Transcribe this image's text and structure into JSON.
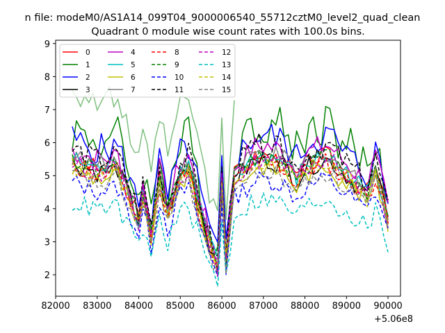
{
  "chart_data": {
    "type": "line",
    "suptitle": "n file: modeM0/AS1A14_099T04_9000006540_55712cztM0_level2_quad_clean",
    "title": "Quadrant 0 module wise count rates with 100.0s bins.",
    "xlabel": "",
    "ylabel": "",
    "x_offset_label": "+5.06e8",
    "xlim": [
      82000,
      90300
    ],
    "ylim": [
      1.35,
      9.1
    ],
    "x_ticks": [
      82000,
      83000,
      84000,
      85000,
      86000,
      87000,
      88000,
      89000,
      90000
    ],
    "x_tick_labels": [
      "82000",
      "83000",
      "84000",
      "85000",
      "86000",
      "87000",
      "88000",
      "89000",
      "90000"
    ],
    "y_ticks": [
      2,
      3,
      4,
      5,
      6,
      7,
      8,
      9
    ],
    "y_tick_labels": [
      "2",
      "3",
      "4",
      "5",
      "6",
      "7",
      "8",
      "9"
    ],
    "legend_position": "upper-left",
    "x_start": 82400,
    "x_step": 100,
    "series": [
      {
        "name": "0",
        "color": "#ff0000",
        "dash": "solid",
        "base": 5.5,
        "amp": 0.3
      },
      {
        "name": "1",
        "color": "#008000",
        "dash": "solid",
        "base": 6.4,
        "amp": 0.7
      },
      {
        "name": "2",
        "color": "#0000ff",
        "dash": "solid",
        "base": 6.1,
        "amp": 0.5
      },
      {
        "name": "3",
        "color": "#000000",
        "dash": "solid",
        "base": 5.4,
        "amp": 0.3
      },
      {
        "name": "4",
        "color": "#bf00bf",
        "dash": "solid",
        "base": 5.8,
        "amp": 0.4
      },
      {
        "name": "5",
        "color": "#00bfbf",
        "dash": "solid",
        "base": 5.5,
        "amp": 0.3
      },
      {
        "name": "6",
        "color": "#bfbf00",
        "dash": "solid",
        "base": 5.2,
        "amp": 0.3
      },
      {
        "name": "7",
        "color": "#808080",
        "dash": "solid",
        "base": 5.6,
        "amp": 0.3
      },
      {
        "name": "8",
        "color": "#ff0000",
        "dash": "dashed",
        "base": 5.3,
        "amp": 0.3
      },
      {
        "name": "9",
        "color": "#008000",
        "dash": "dashed",
        "base": 5.5,
        "amp": 0.3
      },
      {
        "name": "10",
        "color": "#0000ff",
        "dash": "dashed",
        "base": 4.8,
        "amp": 0.3
      },
      {
        "name": "11",
        "color": "#000000",
        "dash": "dashed",
        "base": 5.8,
        "amp": 0.4
      },
      {
        "name": "12",
        "color": "#bf00bf",
        "dash": "dashed",
        "base": 5.4,
        "amp": 0.3
      },
      {
        "name": "13",
        "color": "#00bfbf",
        "dash": "dashed",
        "base": 4.2,
        "amp": 0.3
      },
      {
        "name": "14",
        "color": "#bfbf00",
        "dash": "dashed",
        "base": 5.3,
        "amp": 0.3
      },
      {
        "name": "15",
        "color": "#808080",
        "dash": "dashed",
        "base": 5.0,
        "amp": 0.3
      }
    ],
    "green_overlay": {
      "color": "#7fbf7f",
      "label": ""
    },
    "dip_profile": [
      {
        "x": 82400,
        "d": 0.0
      },
      {
        "x": 83000,
        "d": 0.3
      },
      {
        "x": 83500,
        "d": 0.2
      },
      {
        "x": 84000,
        "d": 1.8
      },
      {
        "x": 84100,
        "d": 1.0
      },
      {
        "x": 84300,
        "d": 2.2
      },
      {
        "x": 84500,
        "d": 0.6
      },
      {
        "x": 84700,
        "d": 1.6
      },
      {
        "x": 85000,
        "d": 0.4
      },
      {
        "x": 85200,
        "d": 0.2
      },
      {
        "x": 85500,
        "d": 1.6
      },
      {
        "x": 85700,
        "d": 2.5
      },
      {
        "x": 85900,
        "d": 3.2
      },
      {
        "x": 86000,
        "d": 0.6
      },
      {
        "x": 86100,
        "d": 3.0
      },
      {
        "x": 86300,
        "d": 0.5
      },
      {
        "x": 86600,
        "d": 0.2
      },
      {
        "x": 87000,
        "d": 0.0
      },
      {
        "x": 87500,
        "d": 0.2
      },
      {
        "x": 87800,
        "d": 0.7
      },
      {
        "x": 88000,
        "d": 0.3
      },
      {
        "x": 88500,
        "d": 0.0
      },
      {
        "x": 89000,
        "d": 0.4
      },
      {
        "x": 89500,
        "d": 1.0
      },
      {
        "x": 89700,
        "d": 0.3
      },
      {
        "x": 89900,
        "d": 1.2
      },
      {
        "x": 90000,
        "d": 1.8
      }
    ]
  }
}
